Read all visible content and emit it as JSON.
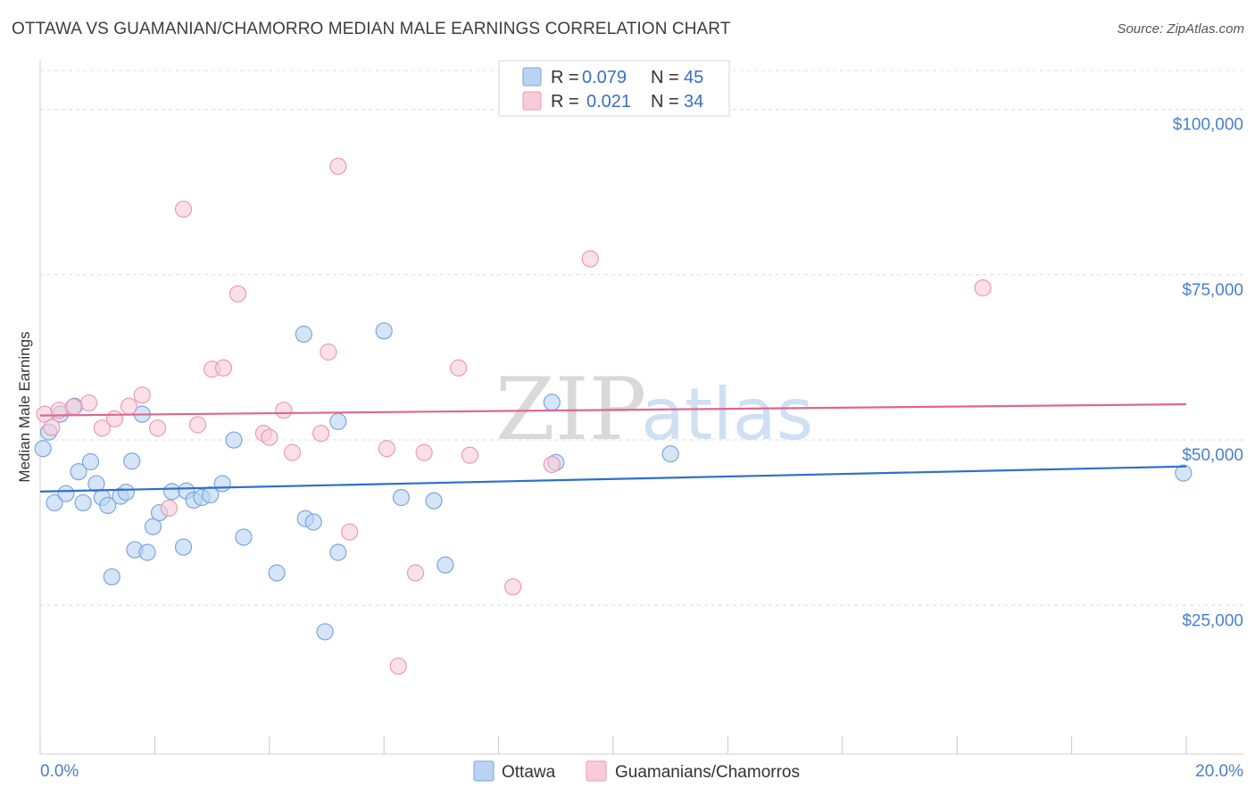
{
  "title": "OTTAWA VS GUAMANIAN/CHAMORRO MEDIAN MALE EARNINGS CORRELATION CHART",
  "source": "Source: ZipAtlas.com",
  "watermark": {
    "zip": "ZIP",
    "atlas": "atlas"
  },
  "colors": {
    "ottawa_fill": "#b9d3f2",
    "ottawa_stroke": "#7aa6de",
    "ottawa_line": "#2f6fcb",
    "guam_fill": "#f9cbd8",
    "guam_stroke": "#ec9ab3",
    "guam_line": "#e0668e",
    "grid": "#dcdcdc",
    "axis_text": "#4a7fcc"
  },
  "legend": {
    "rows": [
      {
        "r_label": "R =",
        "r_value": "0.079",
        "n_label": "N =",
        "n_value": "45"
      },
      {
        "r_label": "R =",
        "r_value": "0.021",
        "n_label": "N =",
        "n_value": "34"
      }
    ]
  },
  "chart_data": {
    "type": "scatter",
    "title": "OTTAWA VS GUAMANIAN/CHAMORRO MEDIAN MALE EARNINGS CORRELATION CHART",
    "xlabel": "",
    "ylabel": "Median Male Earnings",
    "xlim": [
      0,
      20
    ],
    "ylim": [
      2500,
      107500
    ],
    "x_tick_labels": [
      {
        "value": 0,
        "label": "0.0%"
      },
      {
        "value": 20,
        "label": "20.0%"
      }
    ],
    "x_minor_ticks": [
      0,
      2,
      4,
      6,
      8,
      10,
      12,
      14,
      16,
      18,
      20
    ],
    "y_ticks": [
      {
        "value": 25000,
        "label": "$25,000"
      },
      {
        "value": 50000,
        "label": "$50,000"
      },
      {
        "value": 75000,
        "label": "$75,000"
      },
      {
        "value": 100000,
        "label": "$100,000"
      }
    ],
    "grid": true,
    "series": [
      {
        "name": "Ottawa",
        "trend": [
          [
            0,
            42200
          ],
          [
            20,
            46000
          ]
        ],
        "points": [
          [
            0.05,
            48700
          ],
          [
            0.15,
            51200
          ],
          [
            0.25,
            40500
          ],
          [
            0.35,
            53900
          ],
          [
            0.45,
            41900
          ],
          [
            0.6,
            55100
          ],
          [
            0.67,
            45200
          ],
          [
            0.75,
            40500
          ],
          [
            0.88,
            46700
          ],
          [
            0.98,
            43400
          ],
          [
            1.08,
            41300
          ],
          [
            1.18,
            40100
          ],
          [
            1.4,
            41500
          ],
          [
            1.5,
            42100
          ],
          [
            1.6,
            46800
          ],
          [
            1.65,
            33400
          ],
          [
            1.78,
            53900
          ],
          [
            1.87,
            33000
          ],
          [
            1.97,
            36900
          ],
          [
            2.08,
            39000
          ],
          [
            2.3,
            42200
          ],
          [
            2.5,
            33800
          ],
          [
            2.55,
            42300
          ],
          [
            2.68,
            40900
          ],
          [
            2.82,
            41300
          ],
          [
            2.97,
            41700
          ],
          [
            3.18,
            43400
          ],
          [
            3.38,
            50000
          ],
          [
            3.55,
            35300
          ],
          [
            4.13,
            29900
          ],
          [
            4.6,
            66000
          ],
          [
            4.63,
            38100
          ],
          [
            4.77,
            37600
          ],
          [
            4.97,
            21000
          ],
          [
            5.2,
            52800
          ],
          [
            5.2,
            33000
          ],
          [
            6.0,
            66500
          ],
          [
            6.3,
            41300
          ],
          [
            6.87,
            40800
          ],
          [
            7.07,
            31100
          ],
          [
            8.93,
            55700
          ],
          [
            9.0,
            46600
          ],
          [
            11.0,
            47900
          ],
          [
            19.95,
            45000
          ],
          [
            1.25,
            29300
          ]
        ]
      },
      {
        "name": "Guamanians/Chamorros",
        "trend": [
          [
            0,
            53700
          ],
          [
            20,
            55400
          ]
        ],
        "points": [
          [
            0.08,
            53900
          ],
          [
            0.2,
            51900
          ],
          [
            0.33,
            54500
          ],
          [
            0.58,
            55000
          ],
          [
            0.85,
            55600
          ],
          [
            1.08,
            51800
          ],
          [
            1.3,
            53200
          ],
          [
            1.55,
            55100
          ],
          [
            1.78,
            56800
          ],
          [
            2.05,
            51800
          ],
          [
            2.25,
            39700
          ],
          [
            2.5,
            84900
          ],
          [
            2.75,
            52300
          ],
          [
            3.0,
            60700
          ],
          [
            3.2,
            60900
          ],
          [
            3.45,
            72100
          ],
          [
            3.9,
            51000
          ],
          [
            4.0,
            50400
          ],
          [
            4.25,
            54500
          ],
          [
            4.4,
            48100
          ],
          [
            4.9,
            51000
          ],
          [
            5.03,
            63300
          ],
          [
            5.2,
            91400
          ],
          [
            5.4,
            36100
          ],
          [
            6.05,
            48700
          ],
          [
            6.25,
            15800
          ],
          [
            6.55,
            29900
          ],
          [
            6.7,
            48100
          ],
          [
            7.3,
            60900
          ],
          [
            7.5,
            47700
          ],
          [
            8.25,
            27800
          ],
          [
            8.93,
            46300
          ],
          [
            9.6,
            77400
          ],
          [
            16.45,
            73000
          ]
        ]
      }
    ]
  },
  "bottom_legend": [
    "Ottawa",
    "Guamanians/Chamorros"
  ]
}
